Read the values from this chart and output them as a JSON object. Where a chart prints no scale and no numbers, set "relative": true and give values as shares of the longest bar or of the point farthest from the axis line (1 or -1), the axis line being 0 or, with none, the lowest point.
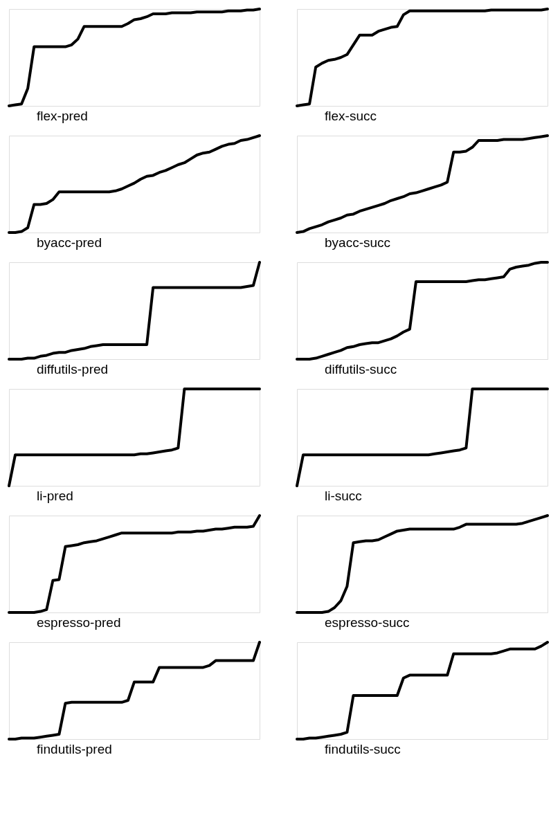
{
  "chart_data": [
    {
      "type": "line",
      "relative": true,
      "tick_labels": false,
      "xlabel": "flex-pred",
      "categories": [
        null,
        null,
        null,
        null,
        null,
        null,
        null,
        null,
        null,
        null,
        null,
        null,
        null,
        null,
        null,
        null,
        null,
        null,
        null,
        null,
        null,
        null,
        null,
        null,
        null,
        null,
        null,
        null,
        null,
        null,
        null,
        null,
        null,
        null,
        null,
        null,
        null,
        null,
        null,
        null,
        null
      ],
      "series": [
        {
          "color": "#000000",
          "values": [
            0,
            0.01,
            0.02,
            0.18,
            0.61,
            0.61,
            0.61,
            0.61,
            0.61,
            0.61,
            0.63,
            0.69,
            0.82,
            0.82,
            0.82,
            0.82,
            0.82,
            0.82,
            0.82,
            0.85,
            0.89,
            0.9,
            0.92,
            0.95,
            0.95,
            0.95,
            0.96,
            0.96,
            0.96,
            0.96,
            0.97,
            0.97,
            0.97,
            0.97,
            0.97,
            0.98,
            0.98,
            0.98,
            0.99,
            0.99,
            1
          ]
        }
      ]
    },
    {
      "type": "line",
      "relative": true,
      "tick_labels": false,
      "xlabel": "flex-succ",
      "categories": [
        null,
        null,
        null,
        null,
        null,
        null,
        null,
        null,
        null,
        null,
        null,
        null,
        null,
        null,
        null,
        null,
        null,
        null,
        null,
        null,
        null,
        null,
        null,
        null,
        null,
        null,
        null,
        null,
        null,
        null,
        null,
        null,
        null,
        null,
        null,
        null,
        null,
        null,
        null,
        null,
        null
      ],
      "series": [
        {
          "color": "#000000",
          "values": [
            0,
            0.01,
            0.02,
            0.4,
            0.44,
            0.47,
            0.48,
            0.5,
            0.53,
            0.63,
            0.73,
            0.73,
            0.73,
            0.77,
            0.79,
            0.81,
            0.82,
            0.94,
            0.98,
            0.98,
            0.98,
            0.98,
            0.98,
            0.98,
            0.98,
            0.98,
            0.98,
            0.98,
            0.98,
            0.98,
            0.98,
            0.99,
            0.99,
            0.99,
            0.99,
            0.99,
            0.99,
            0.99,
            0.99,
            0.99,
            1
          ]
        }
      ]
    },
    {
      "type": "line",
      "relative": true,
      "tick_labels": false,
      "xlabel": "byacc-pred",
      "categories": [
        null,
        null,
        null,
        null,
        null,
        null,
        null,
        null,
        null,
        null,
        null,
        null,
        null,
        null,
        null,
        null,
        null,
        null,
        null,
        null,
        null,
        null,
        null,
        null,
        null,
        null,
        null,
        null,
        null,
        null,
        null,
        null,
        null,
        null,
        null,
        null,
        null,
        null,
        null,
        null,
        null
      ],
      "series": [
        {
          "color": "#000000",
          "values": [
            0,
            0,
            0.01,
            0.05,
            0.29,
            0.29,
            0.3,
            0.34,
            0.42,
            0.42,
            0.42,
            0.42,
            0.42,
            0.42,
            0.42,
            0.42,
            0.42,
            0.43,
            0.45,
            0.48,
            0.51,
            0.55,
            0.58,
            0.59,
            0.62,
            0.64,
            0.67,
            0.7,
            0.72,
            0.76,
            0.8,
            0.82,
            0.83,
            0.86,
            0.89,
            0.91,
            0.92,
            0.95,
            0.96,
            0.98,
            1
          ]
        }
      ]
    },
    {
      "type": "line",
      "relative": true,
      "tick_labels": false,
      "xlabel": "byacc-succ",
      "categories": [
        null,
        null,
        null,
        null,
        null,
        null,
        null,
        null,
        null,
        null,
        null,
        null,
        null,
        null,
        null,
        null,
        null,
        null,
        null,
        null,
        null,
        null,
        null,
        null,
        null,
        null,
        null,
        null,
        null,
        null,
        null,
        null,
        null,
        null,
        null,
        null,
        null,
        null,
        null,
        null,
        null
      ],
      "series": [
        {
          "color": "#000000",
          "values": [
            0,
            0.01,
            0.04,
            0.06,
            0.08,
            0.11,
            0.13,
            0.15,
            0.18,
            0.19,
            0.22,
            0.24,
            0.26,
            0.28,
            0.3,
            0.33,
            0.35,
            0.37,
            0.4,
            0.41,
            0.43,
            0.45,
            0.47,
            0.49,
            0.52,
            0.83,
            0.83,
            0.84,
            0.88,
            0.95,
            0.95,
            0.95,
            0.95,
            0.96,
            0.96,
            0.96,
            0.96,
            0.97,
            0.98,
            0.99,
            1
          ]
        }
      ]
    },
    {
      "type": "line",
      "relative": true,
      "tick_labels": false,
      "xlabel": "diffutils-pred",
      "categories": [
        null,
        null,
        null,
        null,
        null,
        null,
        null,
        null,
        null,
        null,
        null,
        null,
        null,
        null,
        null,
        null,
        null,
        null,
        null,
        null,
        null,
        null,
        null,
        null,
        null,
        null,
        null,
        null,
        null,
        null,
        null,
        null,
        null,
        null,
        null,
        null,
        null,
        null,
        null,
        null,
        null
      ],
      "series": [
        {
          "color": "#000000",
          "values": [
            0,
            0,
            0,
            0.01,
            0.01,
            0.03,
            0.04,
            0.06,
            0.07,
            0.07,
            0.09,
            0.1,
            0.11,
            0.13,
            0.14,
            0.15,
            0.15,
            0.15,
            0.15,
            0.15,
            0.15,
            0.15,
            0.15,
            0.74,
            0.74,
            0.74,
            0.74,
            0.74,
            0.74,
            0.74,
            0.74,
            0.74,
            0.74,
            0.74,
            0.74,
            0.74,
            0.74,
            0.74,
            0.75,
            0.76,
            1
          ]
        }
      ]
    },
    {
      "type": "line",
      "relative": true,
      "tick_labels": false,
      "xlabel": "diffutils-succ",
      "categories": [
        null,
        null,
        null,
        null,
        null,
        null,
        null,
        null,
        null,
        null,
        null,
        null,
        null,
        null,
        null,
        null,
        null,
        null,
        null,
        null,
        null,
        null,
        null,
        null,
        null,
        null,
        null,
        null,
        null,
        null,
        null,
        null,
        null,
        null,
        null,
        null,
        null,
        null,
        null,
        null,
        null
      ],
      "series": [
        {
          "color": "#000000",
          "values": [
            0,
            0,
            0,
            0.01,
            0.03,
            0.05,
            0.07,
            0.09,
            0.12,
            0.13,
            0.15,
            0.16,
            0.17,
            0.17,
            0.19,
            0.21,
            0.24,
            0.28,
            0.31,
            0.8,
            0.8,
            0.8,
            0.8,
            0.8,
            0.8,
            0.8,
            0.8,
            0.8,
            0.81,
            0.82,
            0.82,
            0.83,
            0.84,
            0.85,
            0.93,
            0.95,
            0.96,
            0.97,
            0.99,
            1,
            1
          ]
        }
      ]
    },
    {
      "type": "line",
      "relative": true,
      "tick_labels": false,
      "xlabel": "li-pred",
      "categories": [
        null,
        null,
        null,
        null,
        null,
        null,
        null,
        null,
        null,
        null,
        null,
        null,
        null,
        null,
        null,
        null,
        null,
        null,
        null,
        null,
        null,
        null,
        null,
        null,
        null,
        null,
        null,
        null,
        null,
        null,
        null,
        null,
        null,
        null,
        null,
        null,
        null,
        null,
        null,
        null,
        null
      ],
      "series": [
        {
          "color": "#000000",
          "values": [
            0,
            0.32,
            0.32,
            0.32,
            0.32,
            0.32,
            0.32,
            0.32,
            0.32,
            0.32,
            0.32,
            0.32,
            0.32,
            0.32,
            0.32,
            0.32,
            0.32,
            0.32,
            0.32,
            0.32,
            0.32,
            0.33,
            0.33,
            0.34,
            0.35,
            0.36,
            0.37,
            0.39,
            1,
            1,
            1,
            1,
            1,
            1,
            1,
            1,
            1,
            1,
            1,
            1,
            1
          ]
        }
      ]
    },
    {
      "type": "line",
      "relative": true,
      "tick_labels": false,
      "xlabel": "li-succ",
      "categories": [
        null,
        null,
        null,
        null,
        null,
        null,
        null,
        null,
        null,
        null,
        null,
        null,
        null,
        null,
        null,
        null,
        null,
        null,
        null,
        null,
        null,
        null,
        null,
        null,
        null,
        null,
        null,
        null,
        null,
        null,
        null,
        null,
        null,
        null,
        null,
        null,
        null,
        null,
        null,
        null,
        null
      ],
      "series": [
        {
          "color": "#000000",
          "values": [
            0,
            0.32,
            0.32,
            0.32,
            0.32,
            0.32,
            0.32,
            0.32,
            0.32,
            0.32,
            0.32,
            0.32,
            0.32,
            0.32,
            0.32,
            0.32,
            0.32,
            0.32,
            0.32,
            0.32,
            0.32,
            0.32,
            0.33,
            0.34,
            0.35,
            0.36,
            0.37,
            0.39,
            1,
            1,
            1,
            1,
            1,
            1,
            1,
            1,
            1,
            1,
            1,
            1,
            1
          ]
        }
      ]
    },
    {
      "type": "line",
      "relative": true,
      "tick_labels": false,
      "xlabel": "espresso-pred",
      "categories": [
        null,
        null,
        null,
        null,
        null,
        null,
        null,
        null,
        null,
        null,
        null,
        null,
        null,
        null,
        null,
        null,
        null,
        null,
        null,
        null,
        null,
        null,
        null,
        null,
        null,
        null,
        null,
        null,
        null,
        null,
        null,
        null,
        null,
        null,
        null,
        null,
        null,
        null,
        null,
        null,
        null
      ],
      "series": [
        {
          "color": "#000000",
          "values": [
            0,
            0,
            0,
            0,
            0,
            0.01,
            0.03,
            0.33,
            0.34,
            0.68,
            0.69,
            0.7,
            0.72,
            0.73,
            0.74,
            0.76,
            0.78,
            0.8,
            0.82,
            0.82,
            0.82,
            0.82,
            0.82,
            0.82,
            0.82,
            0.82,
            0.82,
            0.83,
            0.83,
            0.83,
            0.84,
            0.84,
            0.85,
            0.86,
            0.86,
            0.87,
            0.88,
            0.88,
            0.88,
            0.89,
            1
          ]
        }
      ]
    },
    {
      "type": "line",
      "relative": true,
      "tick_labels": false,
      "xlabel": "espresso-succ",
      "categories": [
        null,
        null,
        null,
        null,
        null,
        null,
        null,
        null,
        null,
        null,
        null,
        null,
        null,
        null,
        null,
        null,
        null,
        null,
        null,
        null,
        null,
        null,
        null,
        null,
        null,
        null,
        null,
        null,
        null,
        null,
        null,
        null,
        null,
        null,
        null,
        null,
        null,
        null,
        null,
        null,
        null
      ],
      "series": [
        {
          "color": "#000000",
          "values": [
            0,
            0,
            0,
            0,
            0,
            0.01,
            0.05,
            0.12,
            0.27,
            0.72,
            0.73,
            0.74,
            0.74,
            0.75,
            0.78,
            0.81,
            0.84,
            0.85,
            0.86,
            0.86,
            0.86,
            0.86,
            0.86,
            0.86,
            0.86,
            0.86,
            0.88,
            0.91,
            0.91,
            0.91,
            0.91,
            0.91,
            0.91,
            0.91,
            0.91,
            0.91,
            0.92,
            0.94,
            0.96,
            0.98,
            1
          ]
        }
      ]
    },
    {
      "type": "line",
      "relative": true,
      "tick_labels": false,
      "xlabel": "findutils-pred",
      "categories": [
        null,
        null,
        null,
        null,
        null,
        null,
        null,
        null,
        null,
        null,
        null,
        null,
        null,
        null,
        null,
        null,
        null,
        null,
        null,
        null,
        null,
        null,
        null,
        null,
        null,
        null,
        null,
        null,
        null,
        null,
        null,
        null,
        null,
        null,
        null,
        null,
        null,
        null,
        null,
        null,
        null
      ],
      "series": [
        {
          "color": "#000000",
          "values": [
            0,
            0,
            0.01,
            0.01,
            0.01,
            0.02,
            0.03,
            0.04,
            0.05,
            0.37,
            0.38,
            0.38,
            0.38,
            0.38,
            0.38,
            0.38,
            0.38,
            0.38,
            0.38,
            0.4,
            0.59,
            0.59,
            0.59,
            0.59,
            0.74,
            0.74,
            0.74,
            0.74,
            0.74,
            0.74,
            0.74,
            0.74,
            0.76,
            0.81,
            0.81,
            0.81,
            0.81,
            0.81,
            0.81,
            0.81,
            1
          ]
        }
      ]
    },
    {
      "type": "line",
      "relative": true,
      "tick_labels": false,
      "xlabel": "findutils-succ",
      "categories": [
        null,
        null,
        null,
        null,
        null,
        null,
        null,
        null,
        null,
        null,
        null,
        null,
        null,
        null,
        null,
        null,
        null,
        null,
        null,
        null,
        null,
        null,
        null,
        null,
        null,
        null,
        null,
        null,
        null,
        null,
        null,
        null,
        null,
        null,
        null,
        null,
        null,
        null,
        null,
        null,
        null
      ],
      "series": [
        {
          "color": "#000000",
          "values": [
            0,
            0,
            0.01,
            0.01,
            0.02,
            0.03,
            0.04,
            0.05,
            0.07,
            0.45,
            0.45,
            0.45,
            0.45,
            0.45,
            0.45,
            0.45,
            0.45,
            0.63,
            0.66,
            0.66,
            0.66,
            0.66,
            0.66,
            0.66,
            0.66,
            0.88,
            0.88,
            0.88,
            0.88,
            0.88,
            0.88,
            0.88,
            0.89,
            0.91,
            0.93,
            0.93,
            0.93,
            0.93,
            0.93,
            0.96,
            1
          ]
        }
      ]
    }
  ]
}
